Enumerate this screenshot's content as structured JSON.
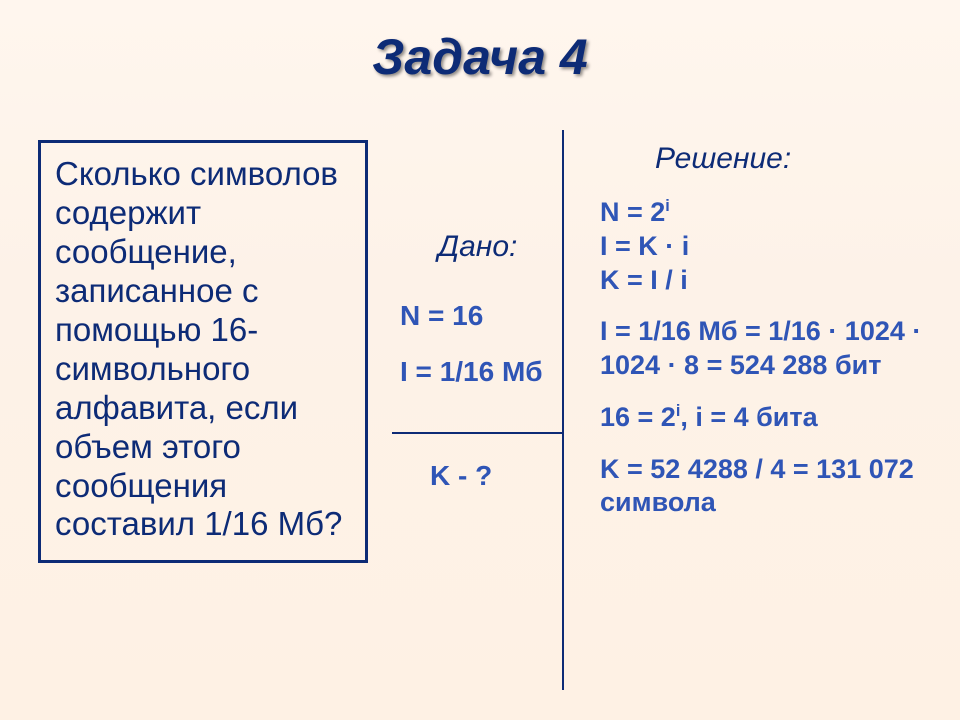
{
  "title": "Задача 4",
  "problem": "Сколько символов содержит сообщение, записанное с помощью 16-символьного алфавита, если объем этого сообщения составил 1/16 Мб?",
  "given": {
    "label": "Дано:",
    "n": "N = 16",
    "I": "I = 1/16 Мб"
  },
  "find": "K - ?",
  "solution": {
    "label": "Решение:",
    "formula1": "N = 2",
    "formula1_sup": "i",
    "formula2": "I = K · i",
    "formula3": "K = I / i",
    "step1": "I = 1/16 Мб = 1/16 · 1024 · 1024 · 8 = 524 288 бит",
    "step2_a": "16 = 2",
    "step2_sup": "i",
    "step2_b": ", i = 4 бита",
    "step3": "K = 52 4288 / 4 = 131 072 символа"
  },
  "colors": {
    "text_primary": "#0d2b76",
    "text_values": "#2f55b6",
    "bg_top": "#fff6ee",
    "bg_bottom": "#fef1e4"
  },
  "fonts": {
    "title_pt": 50,
    "body_pt": 33,
    "given_pt": 28,
    "solution_pt": 27
  }
}
